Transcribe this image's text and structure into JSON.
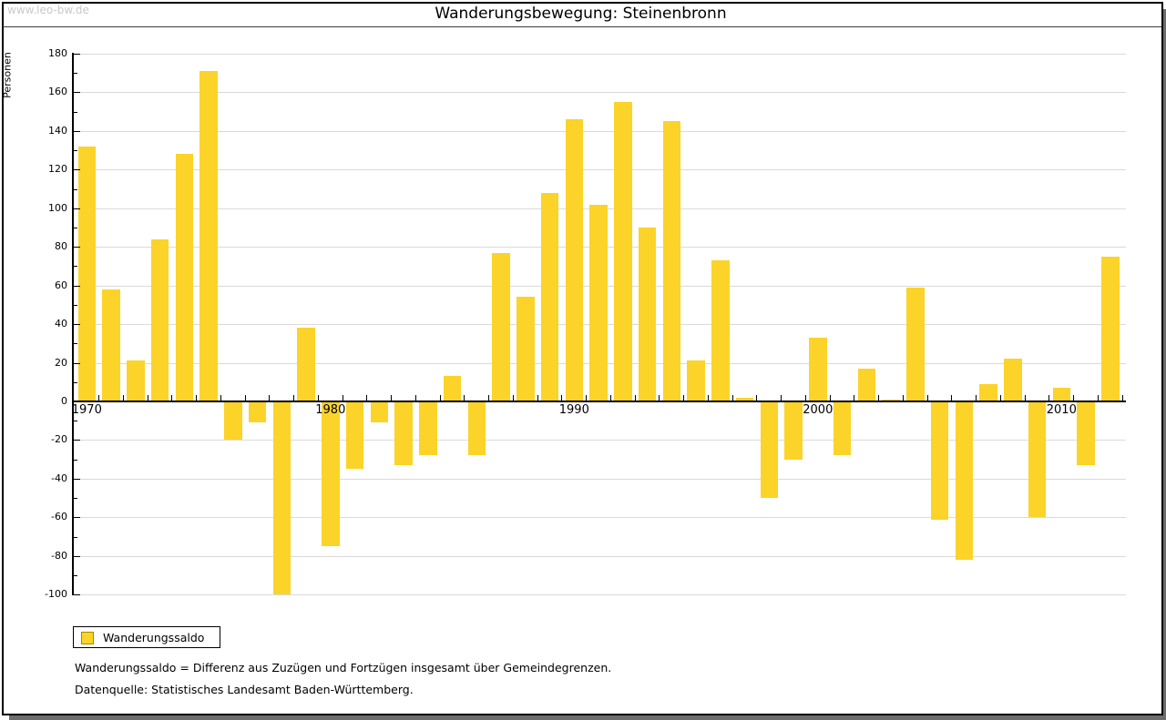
{
  "watermark": "www.leo-bw.de",
  "title": "Wanderungsbewegung: Steinenbronn",
  "y_axis": {
    "label": "Personen",
    "tick_values": [
      180,
      160,
      140,
      120,
      100,
      80,
      60,
      40,
      20,
      0,
      -20,
      -40,
      -60,
      -80,
      -100
    ]
  },
  "x_axis": {
    "decade_labels": [
      "1970",
      "1980",
      "1990",
      "2000",
      "2010"
    ]
  },
  "legend": {
    "label": "Wanderungssaldo"
  },
  "footnotes": [
    "Wanderungssaldo = Differenz aus Zuzügen und Fortzügen insgesamt über Gemeindegrenzen.",
    "Datenquelle: Statistisches Landesamt Baden-Württemberg."
  ],
  "colors": {
    "bar": "#fcd328",
    "swatch_border": "#a28a00",
    "gridline": "#dadada",
    "axis": "#000000",
    "watermark": "#c9c9c9",
    "shadow": "#6d6d6d"
  },
  "chart_data": {
    "type": "bar",
    "title": "Wanderungsbewegung: Steinenbronn",
    "xlabel": "",
    "ylabel": "Personen",
    "ylim": [
      -100,
      180
    ],
    "grid": true,
    "legend_position": "bottom-left",
    "series_name": "Wanderungssaldo",
    "x": [
      1970,
      1971,
      1972,
      1973,
      1974,
      1975,
      1976,
      1977,
      1978,
      1979,
      1980,
      1981,
      1982,
      1983,
      1984,
      1985,
      1986,
      1987,
      1988,
      1989,
      1990,
      1991,
      1992,
      1993,
      1994,
      1995,
      1996,
      1997,
      1998,
      1999,
      2000,
      2001,
      2002,
      2003,
      2004,
      2005,
      2006,
      2007,
      2008,
      2009,
      2010,
      2011,
      2012
    ],
    "values": [
      132,
      58,
      21,
      84,
      128,
      171,
      -20,
      -11,
      -100,
      38,
      -75,
      -35,
      -11,
      -33,
      -28,
      13,
      -28,
      77,
      54,
      108,
      146,
      102,
      155,
      90,
      145,
      21,
      73,
      2,
      -50,
      -30,
      33,
      -28,
      17,
      1,
      59,
      -61,
      -82,
      9,
      22,
      -60,
      7,
      -33,
      75
    ]
  }
}
